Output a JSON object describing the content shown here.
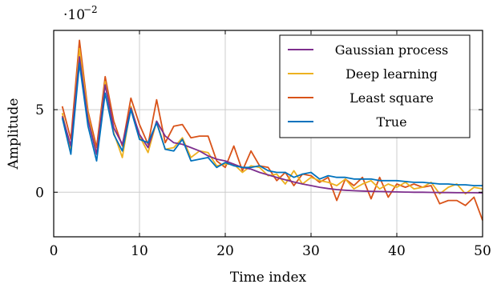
{
  "chart_data": {
    "type": "line",
    "xlabel": "Time index",
    "ylabel": "Amplitude",
    "y_multiplier": {
      "base": "·10",
      "exponent": "−2"
    },
    "xlim": [
      0,
      50
    ],
    "ylim": [
      -2.7,
      9.8
    ],
    "x_ticks": [
      0,
      10,
      20,
      30,
      40,
      50
    ],
    "y_ticks": [
      0,
      5
    ],
    "grid": true,
    "legend_position": "top-right",
    "x": [
      1,
      2,
      3,
      4,
      5,
      6,
      7,
      8,
      9,
      10,
      11,
      12,
      13,
      14,
      15,
      16,
      17,
      18,
      19,
      20,
      21,
      22,
      23,
      24,
      25,
      26,
      27,
      28,
      29,
      30,
      31,
      32,
      33,
      34,
      35,
      36,
      37,
      38,
      39,
      40,
      41,
      42,
      43,
      44,
      45,
      46,
      47,
      48,
      49,
      50
    ],
    "series": [
      {
        "name": "Gaussian process",
        "color": "#7e2f8e",
        "values": [
          4.6,
          2.8,
          8.2,
          4.4,
          2.3,
          6.5,
          3.9,
          2.9,
          5.1,
          3.5,
          2.7,
          4.3,
          3.4,
          3.0,
          2.9,
          2.7,
          2.5,
          2.2,
          2.0,
          1.9,
          1.7,
          1.5,
          1.4,
          1.2,
          1.05,
          0.9,
          0.75,
          0.62,
          0.5,
          0.4,
          0.3,
          0.22,
          0.16,
          0.12,
          0.09,
          0.07,
          0.05,
          0.04,
          0.03,
          0.02,
          0.01,
          0.0,
          0.0,
          -0.01,
          -0.02,
          -0.02,
          -0.03,
          -0.03,
          -0.03,
          -0.04
        ]
      },
      {
        "name": "Deep learning",
        "color": "#edb120",
        "values": [
          4.8,
          2.5,
          8.7,
          4.7,
          2.3,
          6.7,
          3.6,
          2.1,
          5.2,
          3.4,
          2.4,
          4.3,
          2.6,
          2.7,
          3.3,
          2.1,
          2.5,
          2.4,
          1.6,
          1.7,
          1.7,
          1.2,
          1.6,
          1.5,
          1.0,
          1.1,
          0.5,
          1.3,
          0.5,
          0.9,
          0.7,
          0.6,
          0.4,
          0.8,
          0.2,
          0.5,
          0.7,
          0.2,
          0.5,
          0.3,
          0.6,
          0.2,
          0.3,
          0.6,
          -0.1,
          0.3,
          0.5,
          -0.1,
          0.3,
          0.2
        ]
      },
      {
        "name": "Least square",
        "color": "#d95319",
        "values": [
          5.2,
          3.2,
          9.2,
          4.9,
          2.7,
          7.0,
          4.3,
          2.8,
          5.7,
          4.1,
          2.9,
          5.6,
          3.0,
          4.0,
          4.1,
          3.3,
          3.4,
          3.4,
          1.9,
          1.5,
          2.8,
          1.3,
          2.5,
          1.6,
          1.5,
          0.7,
          1.2,
          0.4,
          1.1,
          1.0,
          0.6,
          0.9,
          -0.5,
          0.8,
          0.4,
          0.9,
          -0.4,
          0.9,
          -0.3,
          0.5,
          0.3,
          0.5,
          0.3,
          0.4,
          -0.7,
          -0.5,
          -0.5,
          -0.8,
          -0.3,
          -1.7
        ]
      },
      {
        "name": "True",
        "color": "#0072bd",
        "values": [
          4.5,
          2.3,
          7.8,
          4.0,
          1.9,
          6.0,
          3.5,
          2.5,
          5.0,
          3.2,
          3.0,
          4.2,
          2.6,
          2.5,
          3.2,
          1.9,
          2.0,
          2.1,
          1.5,
          1.8,
          1.6,
          1.5,
          1.5,
          1.6,
          1.3,
          1.2,
          1.2,
          0.9,
          1.1,
          1.2,
          0.8,
          1.0,
          0.9,
          0.9,
          0.8,
          0.8,
          0.8,
          0.7,
          0.7,
          0.7,
          0.65,
          0.6,
          0.6,
          0.55,
          0.5,
          0.5,
          0.45,
          0.45,
          0.4,
          0.4
        ]
      }
    ]
  }
}
